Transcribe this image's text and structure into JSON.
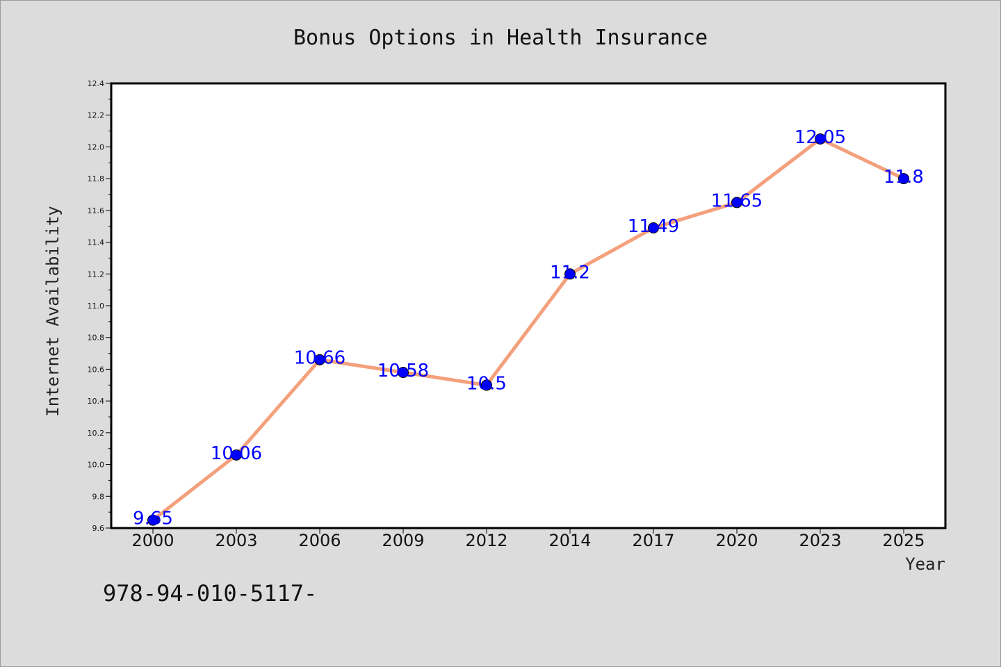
{
  "chart_data": {
    "type": "line",
    "title": "Bonus Options in Health Insurance",
    "xlabel": "Year",
    "ylabel": "Internet Availability",
    "categories": [
      "2000",
      "2003",
      "2006",
      "2009",
      "2012",
      "2014",
      "2017",
      "2020",
      "2023",
      "2025"
    ],
    "values": [
      9.65,
      10.06,
      10.66,
      10.58,
      10.5,
      11.2,
      11.49,
      11.65,
      12.05,
      11.8
    ],
    "data_labels": [
      "9.65",
      "10.06",
      "10.66",
      "10.58",
      "10.5",
      "11.2",
      "11.49",
      "11.65",
      "12.05",
      "11.8"
    ],
    "ylim": [
      9.6,
      12.4
    ],
    "yticks": [
      "9.6",
      "9.8",
      "10.0",
      "10.2",
      "10.4",
      "10.6",
      "10.8",
      "11.0",
      "11.2",
      "11.4",
      "11.6",
      "11.8",
      "12.0",
      "12.2",
      "12.4"
    ],
    "grid": false,
    "line_color": "#f4a07c",
    "marker_color": "#0000ff",
    "label_color": "#0000ff"
  },
  "footnote": "978-94-010-5117-"
}
